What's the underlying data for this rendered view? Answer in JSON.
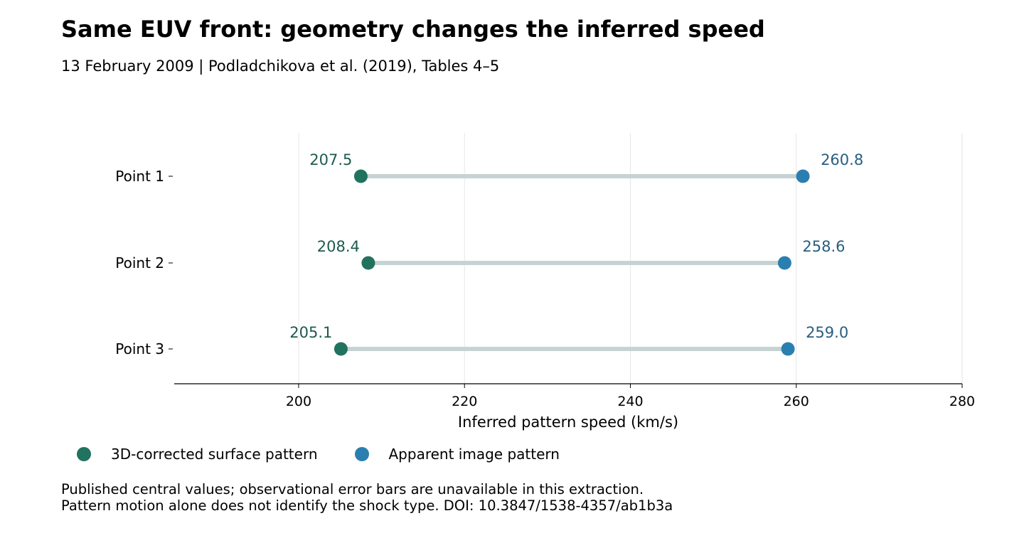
{
  "header": {
    "title": "Same EUV front: geometry changes the inferred speed",
    "subtitle": "13 February 2009 | Podladchikova et al. (2019), Tables 4–5"
  },
  "chart_data": {
    "type": "dumbbell",
    "xlabel": "Inferred pattern speed (km/s)",
    "ylabel": "",
    "xlim": [
      185,
      280
    ],
    "xticks": [
      200,
      220,
      240,
      260,
      280
    ],
    "grid": "vertical",
    "categories": [
      "Point 1",
      "Point 2",
      "Point 3"
    ],
    "series": [
      {
        "name": "3D-corrected surface pattern",
        "color": "#21725f",
        "label_color": "#1e5a4e",
        "values": [
          207.5,
          208.4,
          205.1
        ],
        "labels": [
          "207.5",
          "208.4",
          "205.1"
        ]
      },
      {
        "name": "Apparent image pattern",
        "color": "#2a7fb0",
        "label_color": "#275e80",
        "values": [
          260.8,
          258.6,
          259.0
        ],
        "labels": [
          "260.8",
          "258.6",
          "259.0"
        ]
      }
    ],
    "connector_color": "#c5d3d3",
    "legend_position": "bottom-left"
  },
  "notes": {
    "line1": "Published central values; observational error bars are unavailable in this extraction.",
    "line2": "Pattern motion alone does not identify the shock type. DOI: 10.3847/1538-4357/ab1b3a"
  }
}
